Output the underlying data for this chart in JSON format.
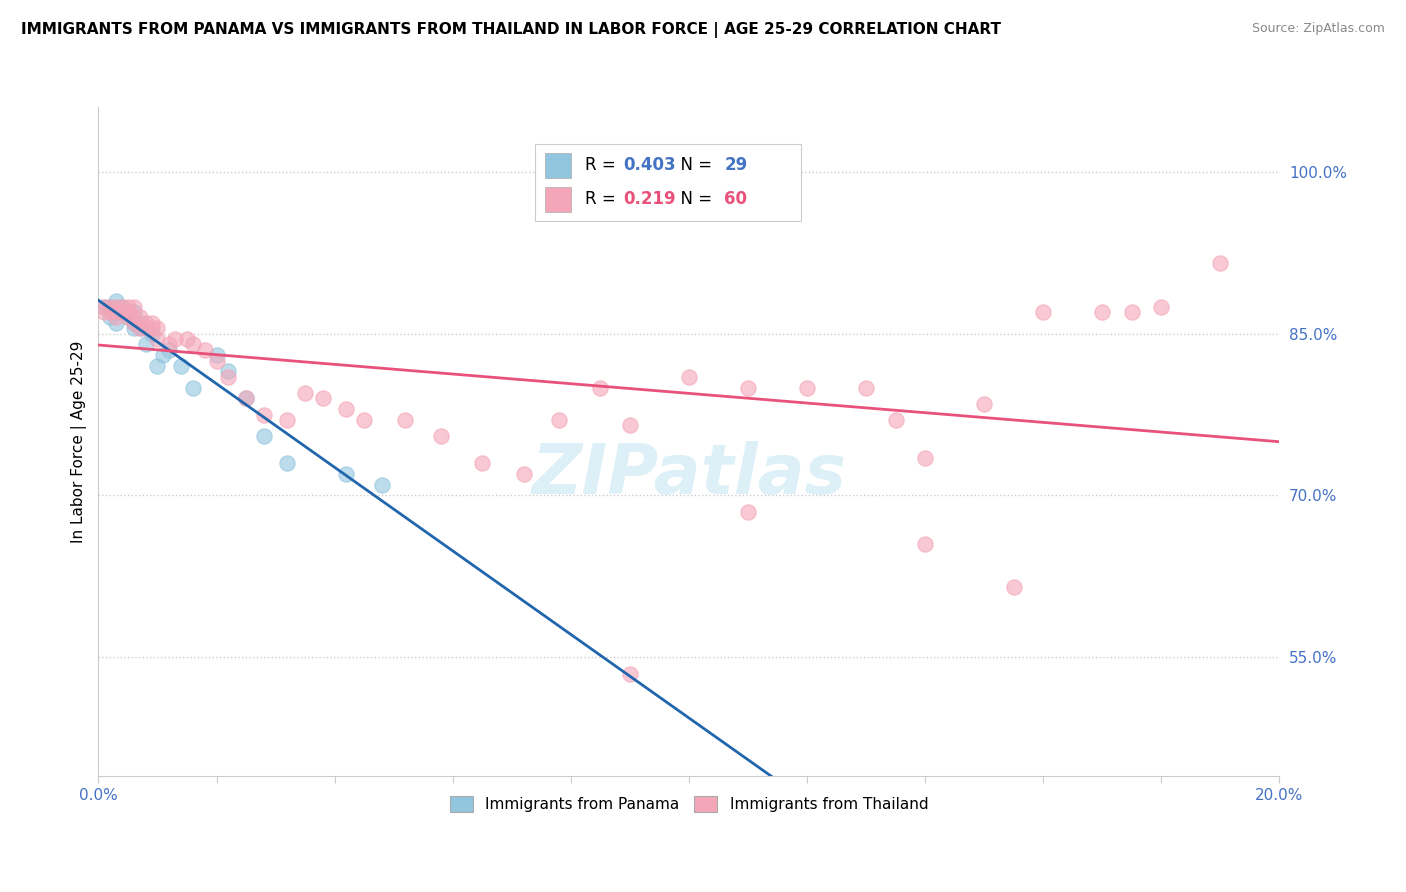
{
  "title": "IMMIGRANTS FROM PANAMA VS IMMIGRANTS FROM THAILAND IN LABOR FORCE | AGE 25-29 CORRELATION CHART",
  "source": "Source: ZipAtlas.com",
  "ylabel": "In Labor Force | Age 25-29",
  "ytick_values": [
    0.55,
    0.7,
    0.85,
    1.0
  ],
  "xlim": [
    0.0,
    0.2
  ],
  "ylim": [
    0.44,
    1.06
  ],
  "legend_blue_label": "Immigrants from Panama",
  "legend_pink_label": "Immigrants from Thailand",
  "r_blue": 0.403,
  "n_blue": 29,
  "r_pink": 0.219,
  "n_pink": 60,
  "blue_color": "#92c5de",
  "pink_color": "#f4a6b8",
  "blue_line_color": "#2166ac",
  "pink_line_color": "#e8517a",
  "blue_label_color": "#4472c4",
  "pink_label_color": "#e8517a",
  "axis_label_color": "#4472c4",
  "panama_x": [
    0.001,
    0.002,
    0.002,
    0.003,
    0.003,
    0.003,
    0.004,
    0.004,
    0.005,
    0.005,
    0.006,
    0.006,
    0.006,
    0.007,
    0.007,
    0.008,
    0.009,
    0.01,
    0.011,
    0.012,
    0.014,
    0.016,
    0.02,
    0.022,
    0.025,
    0.028,
    0.032,
    0.042,
    0.048
  ],
  "panama_y": [
    0.875,
    0.865,
    0.875,
    0.86,
    0.87,
    0.88,
    0.875,
    0.87,
    0.865,
    0.87,
    0.855,
    0.86,
    0.87,
    0.86,
    0.855,
    0.84,
    0.85,
    0.82,
    0.83,
    0.835,
    0.82,
    0.8,
    0.83,
    0.815,
    0.79,
    0.755,
    0.73,
    0.72,
    0.71
  ],
  "thailand_x": [
    0.001,
    0.001,
    0.002,
    0.002,
    0.003,
    0.003,
    0.003,
    0.004,
    0.004,
    0.005,
    0.005,
    0.005,
    0.006,
    0.006,
    0.006,
    0.007,
    0.007,
    0.008,
    0.008,
    0.009,
    0.009,
    0.01,
    0.01,
    0.012,
    0.013,
    0.015,
    0.016,
    0.018,
    0.02,
    0.022,
    0.025,
    0.028,
    0.032,
    0.035,
    0.038,
    0.042,
    0.045,
    0.052,
    0.058,
    0.065,
    0.072,
    0.078,
    0.085,
    0.09,
    0.1,
    0.11,
    0.12,
    0.13,
    0.135,
    0.14,
    0.15,
    0.16,
    0.17,
    0.175,
    0.18,
    0.19,
    0.14,
    0.11,
    0.09,
    0.155
  ],
  "thailand_y": [
    0.87,
    0.875,
    0.87,
    0.875,
    0.865,
    0.875,
    0.87,
    0.875,
    0.87,
    0.87,
    0.865,
    0.875,
    0.86,
    0.865,
    0.875,
    0.855,
    0.865,
    0.86,
    0.855,
    0.855,
    0.86,
    0.845,
    0.855,
    0.84,
    0.845,
    0.845,
    0.84,
    0.835,
    0.825,
    0.81,
    0.79,
    0.775,
    0.77,
    0.795,
    0.79,
    0.78,
    0.77,
    0.77,
    0.755,
    0.73,
    0.72,
    0.77,
    0.8,
    0.765,
    0.81,
    0.8,
    0.8,
    0.8,
    0.77,
    0.735,
    0.785,
    0.87,
    0.87,
    0.87,
    0.875,
    0.915,
    0.655,
    0.685,
    0.535,
    0.615
  ]
}
